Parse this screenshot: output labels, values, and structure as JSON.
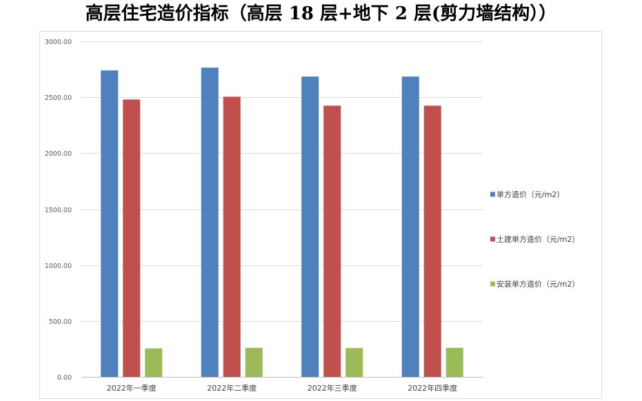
{
  "chart_data": {
    "type": "bar",
    "title": "高层住宅造价指标（高层 18 层+地下 2 层(剪力墙结构））",
    "categories": [
      "2022年一季度",
      "2022年二季度",
      "2022年三季度",
      "2022年四季度"
    ],
    "series": [
      {
        "name": "单方造价（元/m2）",
        "color": "#4F81BD",
        "values": [
          2740,
          2765,
          2685,
          2685
        ]
      },
      {
        "name": "土建单方造价（元/m2）",
        "color": "#C0504D",
        "values": [
          2480,
          2505,
          2425,
          2425
        ]
      },
      {
        "name": "安装单方造价（元/m2）",
        "color": "#9BBB59",
        "values": [
          255,
          260,
          258,
          260
        ]
      }
    ],
    "ylim": [
      0,
      3000
    ],
    "ytick_labels": [
      "0.00",
      "500.00",
      "1000.00",
      "1500.00",
      "2000.00",
      "2500.00",
      "3000.00"
    ],
    "grid": true,
    "legend": "right"
  }
}
